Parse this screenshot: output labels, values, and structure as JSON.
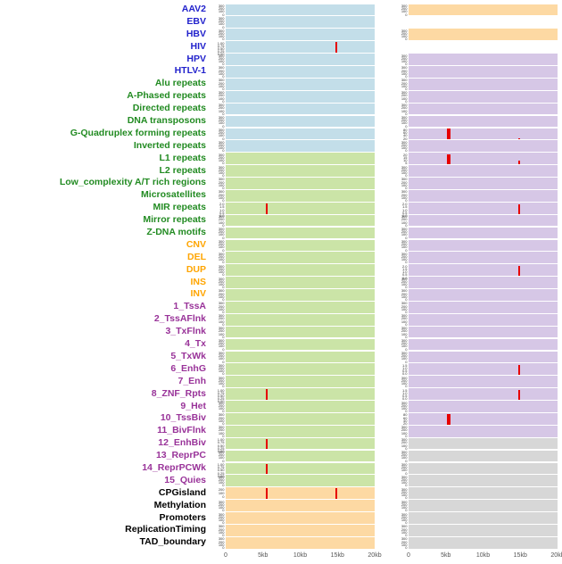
{
  "chart_data": {
    "type": "area",
    "title": "",
    "description": "Genomic annotation density tracks (two panel columns) across a 0-20kb window; red vertical spikes mark density peaks",
    "x_ticks": [
      "0",
      "5kb",
      "10kb",
      "15kb",
      "20kb"
    ],
    "x_tick_kb": [
      0,
      5,
      10,
      15,
      20
    ],
    "x_range_kb": [
      0,
      20
    ],
    "default_yticks": [
      "300",
      "200",
      "100",
      "0"
    ],
    "label_colors": {
      "virus": "#2222cc",
      "repeat": "#228B22",
      "sv": "#ffa500",
      "state": "#993399",
      "other": "#000000"
    },
    "panel_colors": {
      "blue": "#c3dee9",
      "green": "#cbe4a7",
      "orange": "#fdd9a3",
      "purple": "#d6c7e6",
      "gray": "#d7d7d7",
      "none": "transparent"
    },
    "spike_color": "#e60000",
    "rows": [
      {
        "name": "AAV2",
        "group": "virus",
        "left": {
          "bg": "blue"
        },
        "right": {
          "bg": "orange"
        }
      },
      {
        "name": "EBV",
        "group": "virus",
        "left": {
          "bg": "blue"
        },
        "right": {
          "bg": "none",
          "yticks": []
        }
      },
      {
        "name": "HBV",
        "group": "virus",
        "left": {
          "bg": "blue"
        },
        "right": {
          "bg": "orange"
        }
      },
      {
        "name": "HIV",
        "group": "virus",
        "left": {
          "bg": "blue",
          "yticks": [
            "1.00",
            "0.75",
            "0.50",
            "0.25",
            "0.00"
          ],
          "spikes": [
            {
              "x_kb": 14.7,
              "h": 0.95,
              "w": 2
            }
          ]
        },
        "right": {
          "bg": "none",
          "yticks": []
        }
      },
      {
        "name": "HPV",
        "group": "virus",
        "left": {
          "bg": "blue"
        },
        "right": {
          "bg": "purple"
        }
      },
      {
        "name": "HTLV-1",
        "group": "virus",
        "left": {
          "bg": "blue"
        },
        "right": {
          "bg": "purple"
        }
      },
      {
        "name": "Alu repeats",
        "group": "repeat",
        "left": {
          "bg": "blue"
        },
        "right": {
          "bg": "purple"
        }
      },
      {
        "name": "A-Phased repeats",
        "group": "repeat",
        "left": {
          "bg": "blue"
        },
        "right": {
          "bg": "purple"
        }
      },
      {
        "name": "Directed repeats",
        "group": "repeat",
        "left": {
          "bg": "blue"
        },
        "right": {
          "bg": "purple"
        }
      },
      {
        "name": "DNA transposons",
        "group": "repeat",
        "left": {
          "bg": "blue"
        },
        "right": {
          "bg": "purple"
        }
      },
      {
        "name": "G-Quadruplex forming repeats",
        "group": "repeat",
        "left": {
          "bg": "blue"
        },
        "right": {
          "bg": "purple",
          "yticks": [
            "80",
            "60",
            "40",
            "20"
          ],
          "spikes": [
            {
              "x_kb": 5.2,
              "h": 0.95,
              "w": 4
            },
            {
              "x_kb": 14.7,
              "h": 0.12,
              "w": 2
            }
          ]
        }
      },
      {
        "name": "Inverted repeats",
        "group": "repeat",
        "left": {
          "bg": "blue"
        },
        "right": {
          "bg": "purple"
        }
      },
      {
        "name": "L1 repeats",
        "group": "repeat",
        "left": {
          "bg": "green"
        },
        "right": {
          "bg": "purple",
          "yticks": [
            "20",
            "15",
            "10",
            "5"
          ],
          "spikes": [
            {
              "x_kb": 5.2,
              "h": 0.9,
              "w": 4
            },
            {
              "x_kb": 14.7,
              "h": 0.3,
              "w": 2
            }
          ]
        }
      },
      {
        "name": "L2 repeats",
        "group": "repeat",
        "left": {
          "bg": "green"
        },
        "right": {
          "bg": "purple"
        }
      },
      {
        "name": "Low_complexity A/T rich regions",
        "group": "repeat",
        "left": {
          "bg": "green"
        },
        "right": {
          "bg": "purple"
        }
      },
      {
        "name": "Microsatellites",
        "group": "repeat",
        "left": {
          "bg": "green"
        },
        "right": {
          "bg": "purple"
        }
      },
      {
        "name": "MIR repeats",
        "group": "repeat",
        "left": {
          "bg": "green",
          "yticks": [
            "2.0",
            "1.5",
            "1.0",
            "0.5",
            "0.0"
          ],
          "spikes": [
            {
              "x_kb": 5.4,
              "h": 0.9,
              "w": 2
            }
          ]
        },
        "right": {
          "bg": "purple",
          "yticks": [
            "2.0",
            "1.5",
            "1.0",
            "0.5",
            "0.0"
          ],
          "spikes": [
            {
              "x_kb": 14.7,
              "h": 0.85,
              "w": 2
            }
          ]
        }
      },
      {
        "name": "Mirror repeats",
        "group": "repeat",
        "left": {
          "bg": "green"
        },
        "right": {
          "bg": "purple"
        }
      },
      {
        "name": "Z-DNA motifs",
        "group": "repeat",
        "left": {
          "bg": "green"
        },
        "right": {
          "bg": "purple"
        }
      },
      {
        "name": "CNV",
        "group": "sv",
        "left": {
          "bg": "green"
        },
        "right": {
          "bg": "purple"
        }
      },
      {
        "name": "DEL",
        "group": "sv",
        "left": {
          "bg": "green"
        },
        "right": {
          "bg": "purple"
        }
      },
      {
        "name": "DUP",
        "group": "sv",
        "left": {
          "bg": "green"
        },
        "right": {
          "bg": "purple",
          "yticks": [
            "2.0",
            "1.5",
            "1.0",
            "0.5",
            "0.0"
          ],
          "spikes": [
            {
              "x_kb": 14.7,
              "h": 0.85,
              "w": 2
            }
          ]
        }
      },
      {
        "name": "INS",
        "group": "sv",
        "left": {
          "bg": "green"
        },
        "right": {
          "bg": "purple"
        }
      },
      {
        "name": "INV",
        "group": "sv",
        "left": {
          "bg": "green"
        },
        "right": {
          "bg": "purple"
        }
      },
      {
        "name": "1_TssA",
        "group": "state",
        "left": {
          "bg": "green"
        },
        "right": {
          "bg": "purple"
        }
      },
      {
        "name": "2_TssAFlnk",
        "group": "state",
        "left": {
          "bg": "green"
        },
        "right": {
          "bg": "purple"
        }
      },
      {
        "name": "3_TxFlnk",
        "group": "state",
        "left": {
          "bg": "green"
        },
        "right": {
          "bg": "purple"
        }
      },
      {
        "name": "4_Tx",
        "group": "state",
        "left": {
          "bg": "green"
        },
        "right": {
          "bg": "purple"
        }
      },
      {
        "name": "5_TxWk",
        "group": "state",
        "left": {
          "bg": "green"
        },
        "right": {
          "bg": "purple"
        }
      },
      {
        "name": "6_EnhG",
        "group": "state",
        "left": {
          "bg": "green"
        },
        "right": {
          "bg": "purple",
          "yticks": [
            "1.5",
            "1.0",
            "0.5",
            "0.0"
          ],
          "spikes": [
            {
              "x_kb": 14.7,
              "h": 0.9,
              "w": 2
            }
          ]
        }
      },
      {
        "name": "7_Enh",
        "group": "state",
        "left": {
          "bg": "green"
        },
        "right": {
          "bg": "purple"
        }
      },
      {
        "name": "8_ZNF_Rpts",
        "group": "state",
        "left": {
          "bg": "green",
          "yticks": [
            "1.00",
            "0.75",
            "0.50",
            "0.25",
            "0.00"
          ],
          "spikes": [
            {
              "x_kb": 5.4,
              "h": 0.9,
              "w": 2
            }
          ]
        },
        "right": {
          "bg": "purple",
          "yticks": [
            "1.5",
            "1.0",
            "0.5",
            "0.0"
          ],
          "spikes": [
            {
              "x_kb": 14.7,
              "h": 0.85,
              "w": 2
            }
          ]
        }
      },
      {
        "name": "9_Het",
        "group": "state",
        "left": {
          "bg": "green"
        },
        "right": {
          "bg": "purple"
        }
      },
      {
        "name": "10_TssBiv",
        "group": "state",
        "left": {
          "bg": "green"
        },
        "right": {
          "bg": "purple",
          "yticks": [
            "80",
            "60",
            "40",
            "20"
          ],
          "spikes": [
            {
              "x_kb": 5.2,
              "h": 0.9,
              "w": 4
            }
          ]
        }
      },
      {
        "name": "11_BivFlnk",
        "group": "state",
        "left": {
          "bg": "green"
        },
        "right": {
          "bg": "purple"
        }
      },
      {
        "name": "12_EnhBiv",
        "group": "state",
        "left": {
          "bg": "green",
          "yticks": [
            "1.00",
            "0.75",
            "0.50",
            "0.25",
            "0.00"
          ],
          "spikes": [
            {
              "x_kb": 5.4,
              "h": 0.9,
              "w": 2
            }
          ]
        },
        "right": {
          "bg": "gray"
        }
      },
      {
        "name": "13_ReprPC",
        "group": "state",
        "left": {
          "bg": "green"
        },
        "right": {
          "bg": "gray"
        }
      },
      {
        "name": "14_ReprPCWk",
        "group": "state",
        "left": {
          "bg": "green",
          "yticks": [
            "1.00",
            "0.75",
            "0.50",
            "0.25",
            "0.00"
          ],
          "spikes": [
            {
              "x_kb": 5.4,
              "h": 0.85,
              "w": 2
            }
          ]
        },
        "right": {
          "bg": "gray"
        }
      },
      {
        "name": "15_Quies",
        "group": "state",
        "left": {
          "bg": "green"
        },
        "right": {
          "bg": "gray"
        }
      },
      {
        "name": "CPGisland",
        "group": "other",
        "left": {
          "bg": "orange",
          "yticks": [
            "200",
            "100",
            "0"
          ],
          "spikes": [
            {
              "x_kb": 5.4,
              "h": 0.95,
              "w": 2
            },
            {
              "x_kb": 14.7,
              "h": 0.95,
              "w": 2
            }
          ]
        },
        "right": {
          "bg": "gray"
        }
      },
      {
        "name": "Methylation",
        "group": "other",
        "left": {
          "bg": "orange"
        },
        "right": {
          "bg": "gray"
        }
      },
      {
        "name": "Promoters",
        "group": "other",
        "left": {
          "bg": "orange"
        },
        "right": {
          "bg": "gray"
        }
      },
      {
        "name": "ReplicationTiming",
        "group": "other",
        "left": {
          "bg": "orange"
        },
        "right": {
          "bg": "gray"
        }
      },
      {
        "name": "TAD_boundary",
        "group": "other",
        "left": {
          "bg": "orange"
        },
        "right": {
          "bg": "gray"
        }
      }
    ]
  }
}
